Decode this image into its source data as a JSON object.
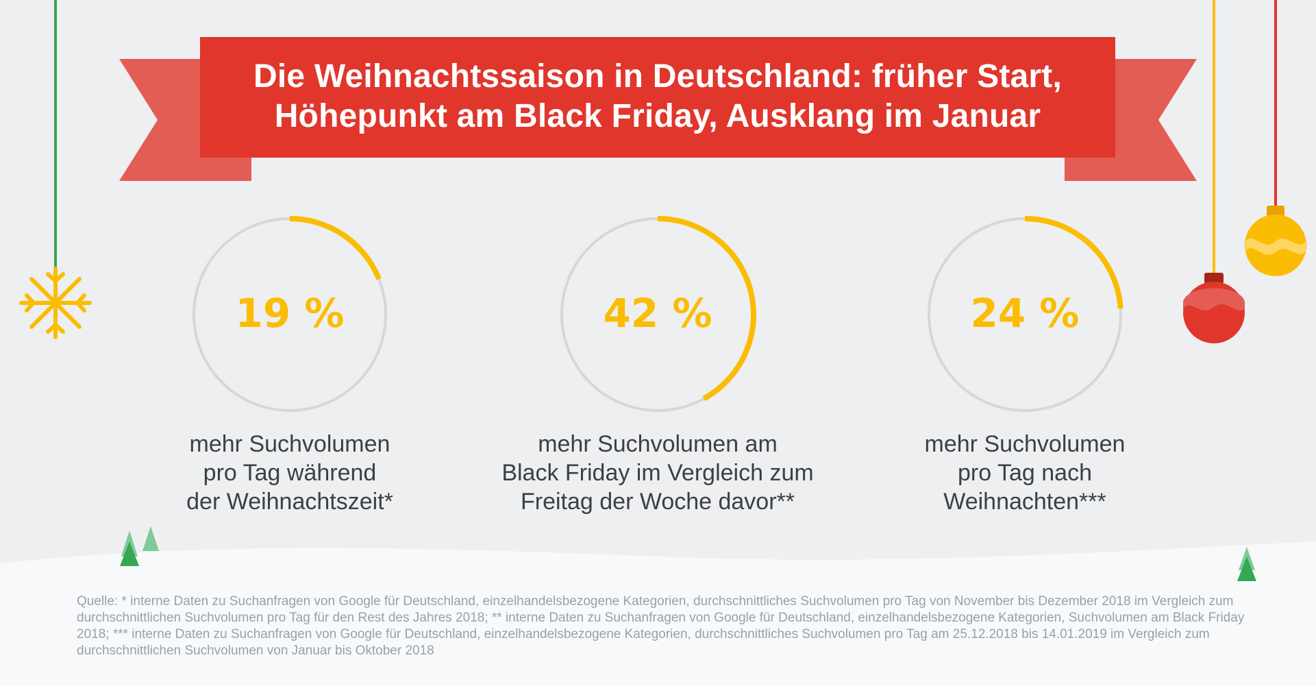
{
  "title": {
    "line1": "Die Weihnachtssaison in Deutschland: früher Start,",
    "line2": "Höhepunkt am Black Friday, Ausklang im Januar"
  },
  "colors": {
    "banner": "#e0362c",
    "banner_tails": "#e35d55",
    "arc": "#fbbc04",
    "ring": "#d6d7d9",
    "value_text": "#fbbc04",
    "label_text": "#3c4043",
    "source_text": "#9aa0a6",
    "background": "#eeeff1",
    "snow": "#f8f9fa"
  },
  "stats": [
    {
      "value": "19 %",
      "label_lines": [
        "mehr Suchvolumen",
        "pro Tag während",
        "der Weihnachtszeit*"
      ]
    },
    {
      "value": "42 %",
      "label_lines": [
        "mehr Suchvolumen am",
        "Black Friday im Vergleich zum",
        "Freitag der Woche davor**"
      ]
    },
    {
      "value": "24 %",
      "label_lines": [
        "mehr Suchvolumen",
        "pro Tag nach",
        "Weihnachten***"
      ]
    }
  ],
  "chart_data": {
    "type": "donut-progress",
    "series": [
      {
        "value": 19,
        "unit": "%"
      },
      {
        "value": 42,
        "unit": "%"
      },
      {
        "value": 24,
        "unit": "%"
      }
    ],
    "max": 100
  },
  "source": {
    "text": "Quelle: * interne Daten zu Suchanfragen von Google für Deutschland, einzelhandelsbezogene Kategorien, durchschnittliches Suchvolumen pro Tag von November bis Dezember 2018 im Vergleich zum durchschnittlichen Suchvolumen pro Tag für den Rest des Jahres 2018; ** interne Daten zu Suchanfragen von Google für Deutschland, einzelhandelsbezogene Kategorien, Suchvolumen am Black Friday 2018; *** interne Daten zu Suchanfragen von Google für Deutschland, einzelhandelsbezogene Kategorien, durchschnittliches Suchvolumen pro Tag am 25.12.2018 bis 14.01.2019 im Vergleich zum durchschnittlichen Suchvolumen von Januar bis Oktober 2018"
  },
  "decorations": [
    "snowflake-icon",
    "red-bauble-icon",
    "yellow-bauble-icon",
    "tree-icon"
  ]
}
